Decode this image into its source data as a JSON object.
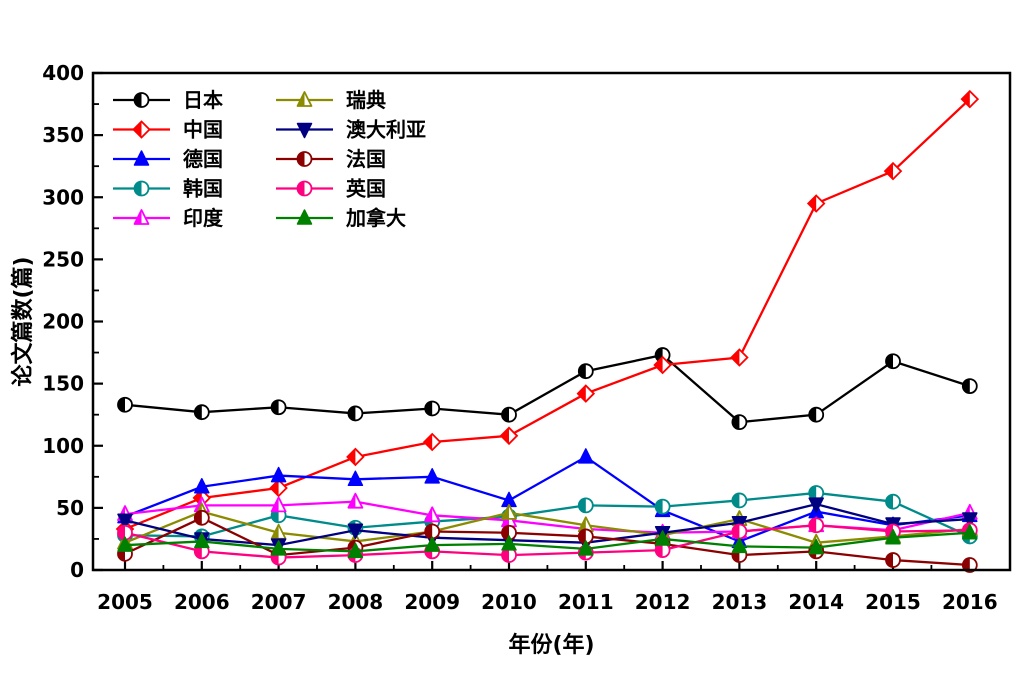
{
  "chart_data": {
    "type": "line",
    "title": "",
    "xlabel": "年份(年)",
    "ylabel": "论文篇数(篇)",
    "x": [
      2005,
      2006,
      2007,
      2008,
      2009,
      2010,
      2011,
      2012,
      2013,
      2014,
      2015,
      2016
    ],
    "ylim": [
      0,
      400
    ],
    "ytick_step": 50,
    "y_minor_step": 25,
    "x_minor_step": 0.5,
    "grid": false,
    "legend_position": "top-left-inside",
    "legend_columns": 2,
    "frame_color": "#000000",
    "background_color": "#ffffff",
    "series": [
      {
        "id": "japan",
        "name": "日本",
        "color": "#000000",
        "marker": "circle-half",
        "values": [
          133,
          127,
          131,
          126,
          130,
          125,
          160,
          173,
          119,
          125,
          168,
          148
        ]
      },
      {
        "id": "china",
        "name": "中国",
        "color": "#FF0000",
        "marker": "diamond-half",
        "values": [
          33,
          58,
          66,
          91,
          103,
          108,
          142,
          165,
          171,
          295,
          321,
          379
        ]
      },
      {
        "id": "germany",
        "name": "德国",
        "color": "#0000FF",
        "marker": "triangle-up",
        "values": [
          43,
          67,
          76,
          73,
          75,
          56,
          91,
          48,
          23,
          47,
          36,
          44
        ]
      },
      {
        "id": "south-korea",
        "name": "韩国",
        "color": "#008B8B",
        "marker": "circle-half",
        "values": [
          28,
          27,
          44,
          34,
          39,
          43,
          52,
          51,
          56,
          62,
          55,
          27
        ]
      },
      {
        "id": "india",
        "name": "印度",
        "color": "#FF00FF",
        "marker": "triangle-half",
        "values": [
          45,
          52,
          52,
          55,
          44,
          40,
          33,
          30,
          31,
          36,
          32,
          46
        ]
      },
      {
        "id": "sweden",
        "name": "瑞典",
        "color": "#8B8B00",
        "marker": "triangle-half",
        "values": [
          22,
          47,
          30,
          23,
          31,
          46,
          36,
          28,
          41,
          22,
          27,
          33
        ]
      },
      {
        "id": "australia",
        "name": "澳大利亚",
        "color": "#000080",
        "marker": "triangle-down",
        "values": [
          40,
          25,
          20,
          32,
          26,
          24,
          22,
          30,
          38,
          53,
          37,
          41
        ]
      },
      {
        "id": "france",
        "name": "法国",
        "color": "#8B0000",
        "marker": "circle-half",
        "values": [
          13,
          42,
          12,
          18,
          31,
          30,
          27,
          21,
          12,
          15,
          8,
          4
        ]
      },
      {
        "id": "uk",
        "name": "英国",
        "color": "#FF0080",
        "marker": "circle-half",
        "values": [
          30,
          15,
          10,
          12,
          15,
          12,
          14,
          16,
          31,
          36,
          31,
          32
        ]
      },
      {
        "id": "canada",
        "name": "加拿大",
        "color": "#008000",
        "marker": "triangle-up",
        "values": [
          20,
          23,
          17,
          15,
          20,
          21,
          17,
          25,
          19,
          18,
          26,
          30
        ]
      }
    ]
  }
}
